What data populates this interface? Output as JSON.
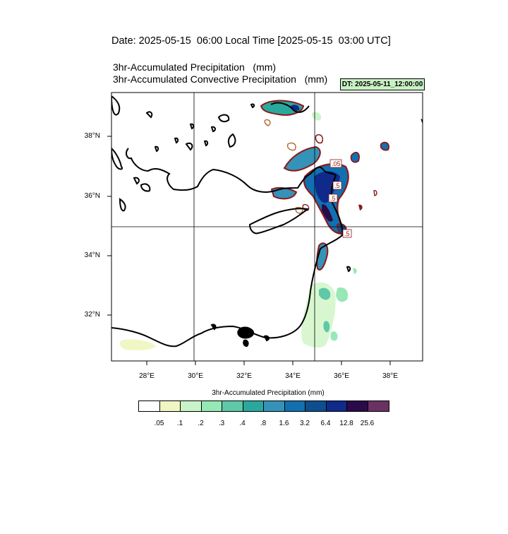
{
  "header": {
    "date_line": "Date: 2025-05-15  06:00 Local Time [2025-05-15  03:00 UTC]",
    "title_precip": "3hr-Accumulated Precipitation   (mm)",
    "title_convective": "3hr-Accumulated Convective Precipitation   (mm)",
    "dt_badge": "DT: 2025-05-11_12:00:00"
  },
  "map": {
    "lat_labels": [
      "38°N",
      "36°N",
      "34°N",
      "32°N"
    ],
    "lon_labels": [
      "28°E",
      "30°E",
      "32°E",
      "34°E",
      "36°E",
      "38°E"
    ],
    "contour_labels": [
      ".05",
      ".5",
      ".5",
      ".5"
    ]
  },
  "colorbar": {
    "title": "3hr-Accumulated Precipitation  (mm)",
    "colors": [
      "#ffffff",
      "#f0f7c4",
      "#c8f5c8",
      "#96e8b4",
      "#5ec8a8",
      "#2aa89e",
      "#3592b8",
      "#1270b0",
      "#0d4f8e",
      "#102a8c",
      "#2a0a4a",
      "#6a3264"
    ],
    "tick_labels": [
      ".05",
      ".1",
      ".2",
      ".3",
      ".4",
      ".8",
      "1.6",
      "3.2",
      "6.4",
      "12.8",
      "25.6"
    ]
  }
}
